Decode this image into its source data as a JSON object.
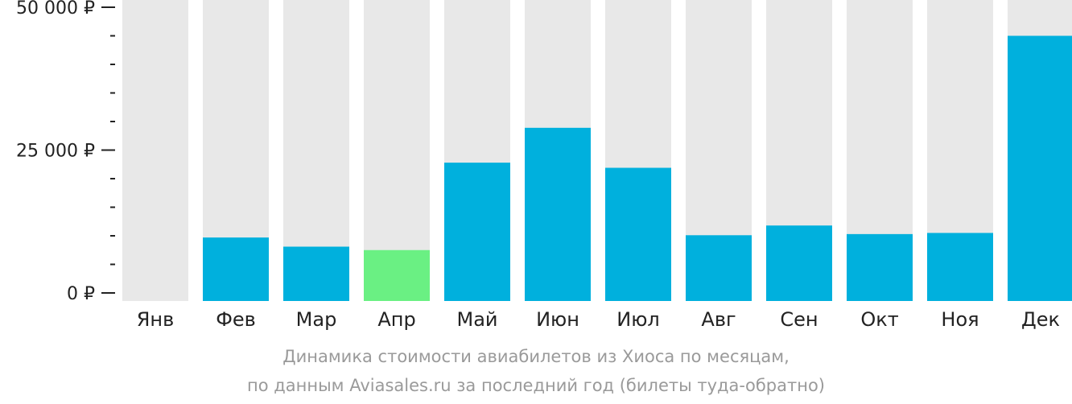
{
  "chart_data": {
    "type": "bar",
    "categories": [
      "Янв",
      "Фев",
      "Мар",
      "Апр",
      "Май",
      "Июн",
      "Июл",
      "Авг",
      "Сен",
      "Окт",
      "Ноя",
      "Дек"
    ],
    "values": [
      null,
      9700,
      8100,
      7500,
      22800,
      28900,
      21900,
      10100,
      11800,
      10300,
      10500,
      45000
    ],
    "highlight_category": "Апр",
    "ylim": [
      0,
      50000
    ],
    "yticks": [
      {
        "value": 0,
        "label": "0 ₽"
      },
      {
        "value": 25000,
        "label": "25 000 ₽"
      },
      {
        "value": 50000,
        "label": "50 000 ₽"
      }
    ],
    "minor_tick_step": 5000,
    "colors": {
      "bar": "#00b0dd",
      "highlight": "#6af083",
      "background_bar": "#e8e8e8",
      "axis": "#222222"
    },
    "caption": {
      "line1": "Динамика стоимости авиабилетов из Хиоса по месяцам,",
      "line2": "по данным Aviasales.ru за последний год (билеты туда-обратно)"
    }
  }
}
